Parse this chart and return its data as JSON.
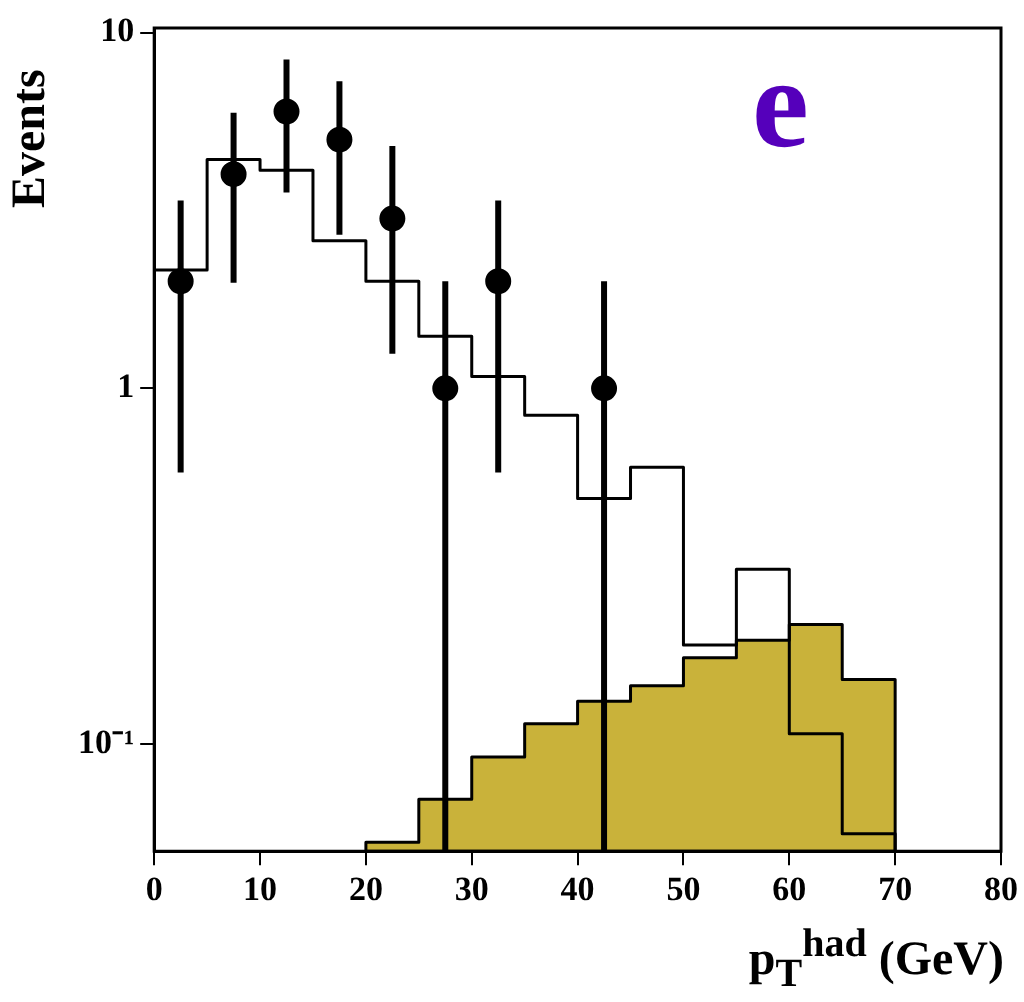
{
  "chart_data": {
    "type": "histogram",
    "xlabel": "p$_{T}$$^{had}$ (GeV)",
    "ylabel": "Events",
    "annotations": [
      "e"
    ],
    "log": true,
    "grid": false,
    "legend": false,
    "xlim": [
      0,
      80
    ],
    "xticks": [
      0,
      10,
      20,
      30,
      40,
      50,
      60,
      70,
      80
    ],
    "ylim": [
      0.05,
      10.3
    ],
    "yticks": [
      {
        "value": 0.1,
        "label": "10⁻¹"
      },
      1,
      10
    ],
    "series": [
      {
        "type": "histogram",
        "line_style": "solid",
        "color": "#000000",
        "bins": [
          0,
          5,
          10,
          15,
          20,
          25,
          30,
          35,
          40,
          45,
          50,
          55,
          60,
          65,
          70
        ],
        "values": [
          2.15,
          4.4,
          4.1,
          2.6,
          2.0,
          1.4,
          1.08,
          0.84,
          0.49,
          0.6,
          0.19,
          0.31,
          0.107,
          0.056
        ]
      },
      {
        "color": "#c9b23a",
        "bins": [
          20,
          25,
          30,
          35,
          40,
          45,
          50,
          55,
          60,
          65,
          70
        ],
        "values": [
          0.053,
          0.07,
          0.092,
          0.114,
          0.132,
          0.146,
          0.175,
          0.196,
          0.217,
          0.152
        ]
      },
      {
        "type": "scatter",
        "color": "#000000",
        "marker": "circle",
        "x": [
          2.5,
          7.5,
          12.5,
          17.5,
          22.5,
          27.5,
          32.5,
          42.5
        ],
        "values": [
          2,
          4,
          6,
          5,
          3,
          1,
          2,
          1
        ],
        "errors": [
          [
            0.58,
            3.37
          ],
          [
            1.98,
            5.95
          ],
          [
            3.55,
            8.4
          ],
          [
            2.7,
            7.3
          ],
          [
            1.25,
            4.8
          ],
          [
            0.05,
            2.0
          ],
          [
            0.58,
            3.37
          ],
          [
            0.05,
            2.0
          ]
        ]
      }
    ]
  }
}
